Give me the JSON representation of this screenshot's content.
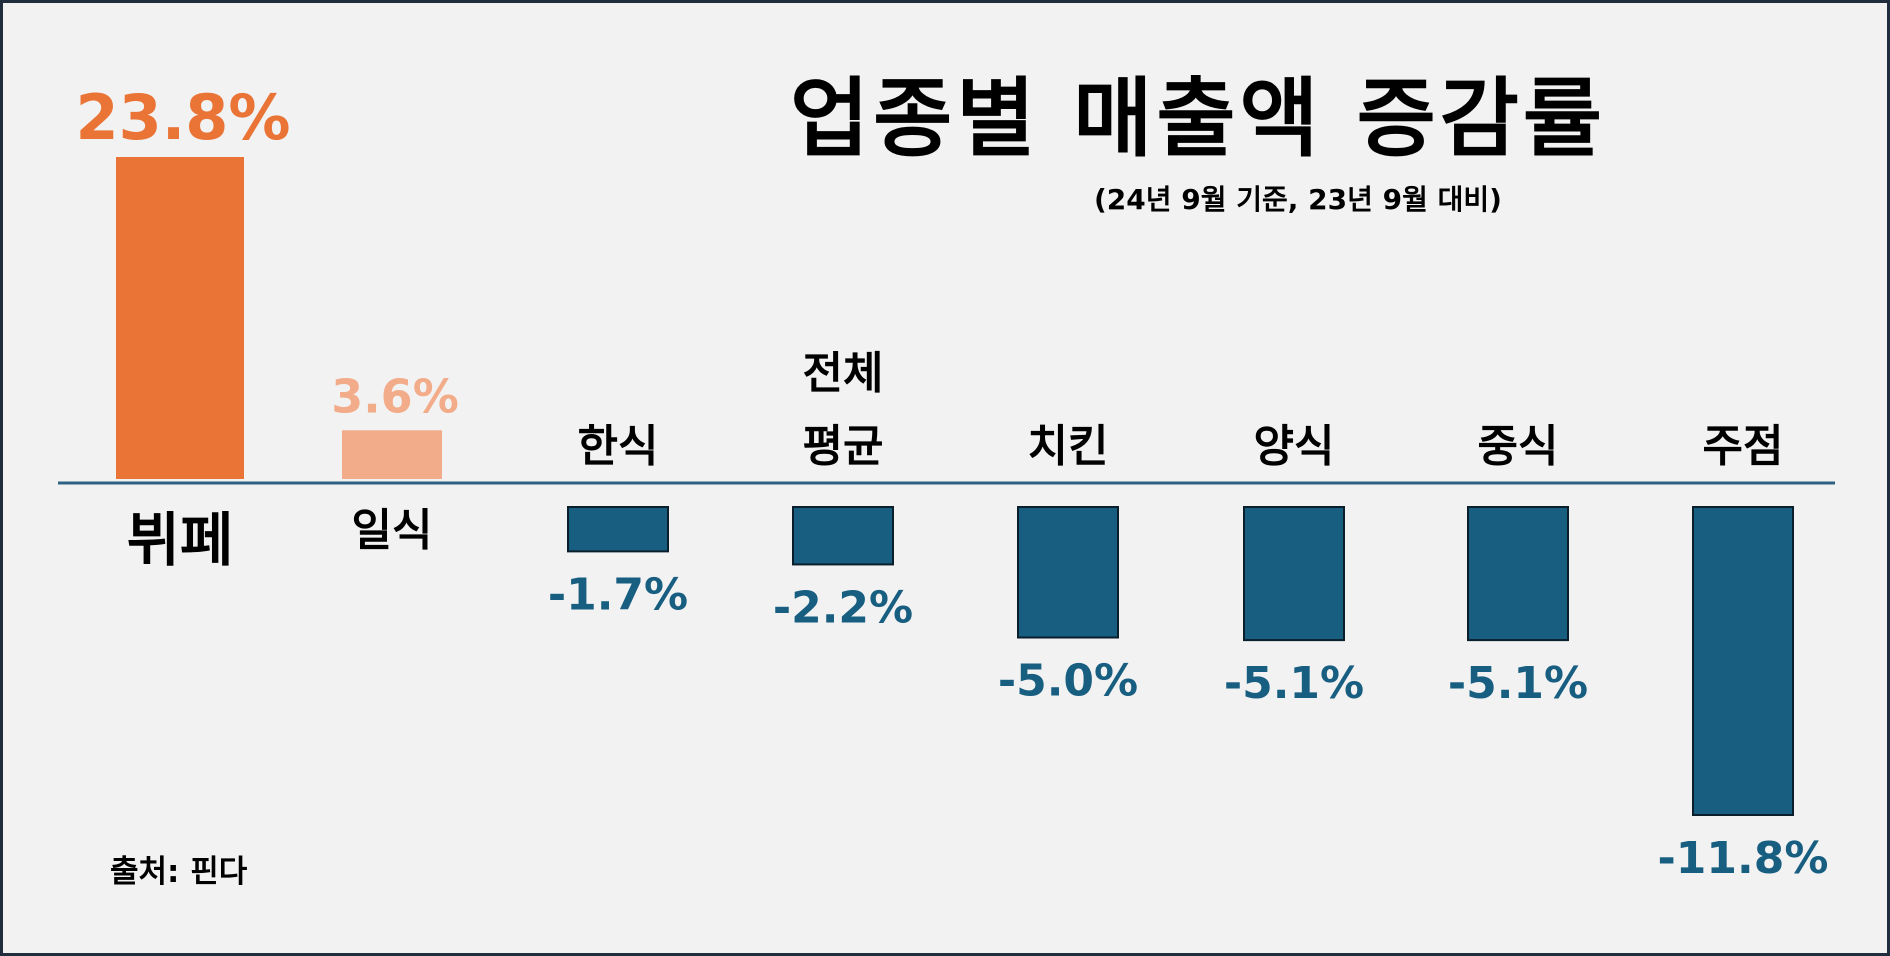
{
  "title": "업종별 매출액 증감률",
  "subtitle": "(24년 9월 기준, 23년 9월 대비)",
  "source": "출처: 핀다",
  "colors": {
    "positive_top": "#e97436",
    "positive_second": "#f3ac8a",
    "negative": "#175e80",
    "axis": "#2e6383",
    "text": "#000000"
  },
  "chart_data": {
    "type": "bar",
    "title": "업종별 매출액 증감률",
    "subtitle": "(24년 9월 기준, 23년 9월 대비)",
    "categories": [
      "뷔페",
      "일식",
      "한식",
      "전체 평균",
      "치킨",
      "양식",
      "중식",
      "주점"
    ],
    "values": [
      23.8,
      3.6,
      -1.7,
      -2.2,
      -5.0,
      -5.1,
      -5.1,
      -11.8
    ],
    "data_labels": [
      "23.8%",
      "3.6%",
      "-1.7%",
      "-2.2%",
      "-5.0%",
      "-5.1%",
      "-5.1%",
      "-11.8%"
    ],
    "unit": "%",
    "xlabel": "",
    "ylabel": "",
    "grid": false,
    "legend": "none"
  }
}
